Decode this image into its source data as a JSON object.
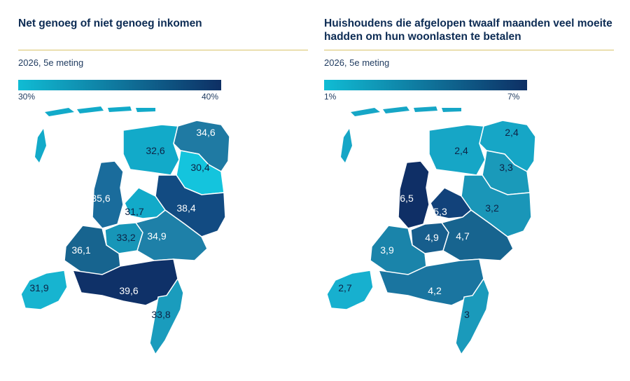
{
  "left": {
    "title": "Net genoeg of niet genoeg inkomen",
    "subtitle": "2026, 5e meting",
    "legend_min": "30%",
    "legend_max": "40%",
    "regions": {
      "groningen": {
        "color": "#1f7aa3",
        "label": "34,6"
      },
      "friesland": {
        "color": "#12aac9",
        "label": "32,6"
      },
      "drenthe": {
        "color": "#14c4dd",
        "label": "30,4"
      },
      "overijssel": {
        "color": "#124b82",
        "label": "38,4"
      },
      "flevoland": {
        "color": "#12aac9",
        "label": "31,7"
      },
      "noord_holland": {
        "color": "#1a6c9c",
        "label": "35,6"
      },
      "utrecht": {
        "color": "#1796b8",
        "label": "33,2"
      },
      "gelderland": {
        "color": "#1e80a8",
        "label": "34,9"
      },
      "zuid_holland": {
        "color": "#17648f",
        "label": "36,1"
      },
      "zeeland": {
        "color": "#17b4d0",
        "label": "31,9"
      },
      "noord_brabant": {
        "color": "#0f3168",
        "label": "39,6"
      },
      "limburg": {
        "color": "#1a9cbd",
        "label": "33,8"
      }
    }
  },
  "right": {
    "title": "Huishoudens die afgelopen twaalf maanden veel moeite hadden om hun woonlasten te betalen",
    "subtitle": "2026, 5e meting",
    "legend_min": "1%",
    "legend_max": "7%",
    "regions": {
      "groningen": {
        "color": "#16a6c6",
        "label": "2,4"
      },
      "friesland": {
        "color": "#16a6c6",
        "label": "2,4"
      },
      "drenthe": {
        "color": "#1a9aba",
        "label": "3,3"
      },
      "overijssel": {
        "color": "#1a96b8",
        "label": "3,2"
      },
      "flevoland": {
        "color": "#12427a",
        "label": "5,3"
      },
      "noord_holland": {
        "color": "#0f2f66",
        "label": "6,5"
      },
      "utrecht": {
        "color": "#175e8d",
        "label": "4,9"
      },
      "gelderland": {
        "color": "#17648f",
        "label": "4,7"
      },
      "zuid_holland": {
        "color": "#1a84aa",
        "label": "3,9"
      },
      "zeeland": {
        "color": "#17b0cf",
        "label": "2,7"
      },
      "noord_brabant": {
        "color": "#1a75a0",
        "label": "4,2"
      },
      "limburg": {
        "color": "#1a9abb",
        "label": "3"
      }
    }
  }
}
